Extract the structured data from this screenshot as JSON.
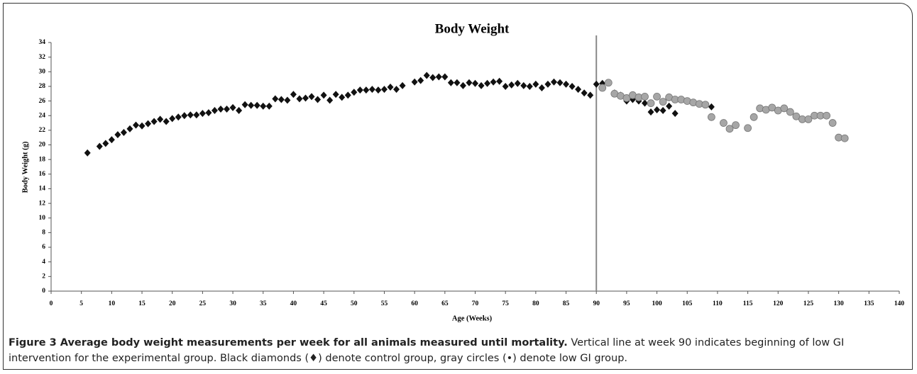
{
  "chart_data": {
    "type": "scatter",
    "title": "Body Weight",
    "x_label": "Age (Weeks)",
    "y_label": "Body Weight (g)",
    "xlim": [
      0,
      140
    ],
    "xticks": [
      0,
      5,
      10,
      15,
      20,
      25,
      30,
      35,
      40,
      45,
      50,
      55,
      60,
      65,
      70,
      75,
      80,
      85,
      90,
      95,
      100,
      105,
      110,
      115,
      120,
      125,
      130,
      135,
      140
    ],
    "ylim": [
      0,
      34
    ],
    "yticks": [
      0,
      2,
      4,
      6,
      8,
      10,
      12,
      14,
      16,
      18,
      20,
      22,
      24,
      26,
      28,
      30,
      32,
      34
    ],
    "vlines": [
      90
    ],
    "vline_color": "#888888",
    "series": [
      {
        "marker": "diamond",
        "color": "#111111",
        "x": [
          6,
          8,
          9,
          10,
          11,
          12,
          13,
          14,
          15,
          16,
          17,
          18,
          19,
          20,
          21,
          22,
          23,
          24,
          25,
          26,
          27,
          28,
          29,
          30,
          31,
          32,
          33,
          34,
          35,
          36,
          37,
          38,
          39,
          40,
          41,
          42,
          43,
          44,
          45,
          46,
          47,
          48,
          49,
          50,
          51,
          52,
          53,
          54,
          55,
          56,
          57,
          58,
          60,
          61,
          62,
          63,
          64,
          65,
          66,
          67,
          68,
          69,
          70,
          71,
          72,
          73,
          74,
          75,
          76,
          77,
          78,
          79,
          80,
          81,
          82,
          83,
          84,
          85,
          86,
          87,
          88,
          89,
          90,
          91,
          93,
          94,
          95,
          96,
          97,
          98,
          99,
          100,
          101,
          102,
          103,
          109
        ],
        "values": [
          18.9,
          19.8,
          20.2,
          20.7,
          21.4,
          21.7,
          22.2,
          22.7,
          22.6,
          22.9,
          23.2,
          23.5,
          23.2,
          23.6,
          23.8,
          24.0,
          24.1,
          24.1,
          24.3,
          24.4,
          24.7,
          24.9,
          24.9,
          25.1,
          24.7,
          25.5,
          25.4,
          25.4,
          25.3,
          25.3,
          26.3,
          26.2,
          26.1,
          26.9,
          26.3,
          26.4,
          26.6,
          26.2,
          26.8,
          26.1,
          26.9,
          26.5,
          26.8,
          27.2,
          27.5,
          27.5,
          27.6,
          27.5,
          27.6,
          27.9,
          27.6,
          28.1,
          28.6,
          28.8,
          29.5,
          29.2,
          29.3,
          29.3,
          28.5,
          28.5,
          28.1,
          28.5,
          28.4,
          28.1,
          28.4,
          28.6,
          28.7,
          28.0,
          28.2,
          28.4,
          28.1,
          28.0,
          28.3,
          27.8,
          28.3,
          28.6,
          28.5,
          28.3,
          28.0,
          27.6,
          27.1,
          26.8,
          28.3,
          28.4,
          27.1,
          26.8,
          26.0,
          26.2,
          26.0,
          25.7,
          24.5,
          24.8,
          24.7,
          25.3,
          24.3,
          25.2
        ]
      },
      {
        "marker": "circle",
        "color": "#a6a6a6",
        "x": [
          91,
          92,
          93,
          94,
          95,
          96,
          97,
          98,
          99,
          100,
          101,
          102,
          103,
          104,
          105,
          106,
          107,
          108,
          109,
          111,
          112,
          113,
          115,
          116,
          117,
          118,
          119,
          120,
          121,
          122,
          123,
          124,
          125,
          126,
          127,
          128,
          129,
          130,
          131
        ],
        "values": [
          27.8,
          28.5,
          27.0,
          26.7,
          26.4,
          26.8,
          26.5,
          26.6,
          25.7,
          26.6,
          25.9,
          26.5,
          26.2,
          26.2,
          26.0,
          25.8,
          25.6,
          25.5,
          23.8,
          23.0,
          22.2,
          22.7,
          22.3,
          23.8,
          25.0,
          24.8,
          25.1,
          24.7,
          25.0,
          24.5,
          23.9,
          23.5,
          23.5,
          24.0,
          24.0,
          24.0,
          23.0,
          21.0,
          20.9
        ]
      }
    ]
  },
  "caption": {
    "title": "Figure 3 Average body weight measurements per week for all animals measured until mortality.",
    "text": "Vertical line at week 90 indicates beginning of low GI intervention for the experimental group. Black diamonds (♦) denote control group, gray circles (•) denote low GI group."
  }
}
